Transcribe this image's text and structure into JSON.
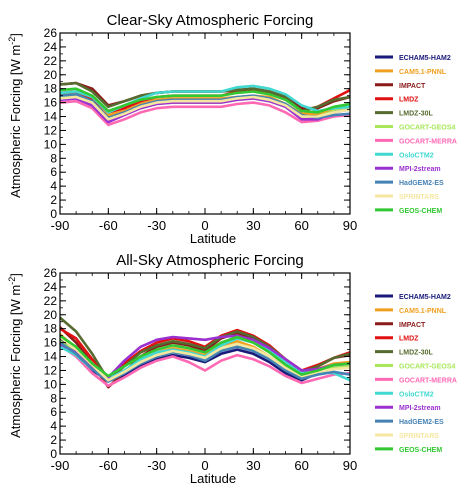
{
  "chart_data": [
    {
      "type": "line",
      "title": "Clear-Sky Atmospheric Forcing",
      "xlabel": "Latitude",
      "ylabel_main": "Atmospheric Forcing [W m",
      "ylabel_sup": "-2",
      "ylabel_end": "]",
      "xlim": [
        -90,
        90
      ],
      "ylim": [
        0,
        26
      ],
      "xticks": [
        -90,
        -60,
        -30,
        0,
        30,
        60,
        90
      ],
      "yticks": [
        0,
        2,
        4,
        6,
        8,
        10,
        12,
        14,
        16,
        18,
        20,
        22,
        24,
        26
      ],
      "x": [
        -90,
        -80,
        -70,
        -60,
        -50,
        -40,
        -30,
        -20,
        -10,
        0,
        10,
        20,
        30,
        40,
        50,
        60,
        70,
        80,
        90
      ],
      "series": [
        {
          "name": "ECHAM5-HAM2",
          "color": "#1a1a7a",
          "values": [
            17.0,
            17.2,
            16.4,
            14.0,
            14.6,
            15.6,
            16.2,
            16.4,
            16.4,
            16.4,
            16.4,
            16.6,
            16.8,
            16.6,
            15.6,
            14.4,
            14.2,
            14.8,
            15.0
          ]
        },
        {
          "name": "CAM5.1-PNNL",
          "color": "#f0a020",
          "values": [
            17.2,
            17.4,
            16.6,
            14.2,
            14.8,
            15.8,
            16.4,
            16.6,
            16.6,
            16.6,
            16.6,
            16.8,
            17.0,
            16.8,
            15.8,
            14.4,
            14.4,
            15.0,
            15.2
          ]
        },
        {
          "name": "IMPACT",
          "color": "#8b1a1a",
          "values": [
            18.6,
            18.8,
            18.0,
            15.6,
            16.2,
            17.0,
            17.4,
            17.6,
            17.6,
            17.6,
            17.6,
            17.8,
            18.0,
            17.6,
            16.8,
            15.2,
            15.2,
            16.2,
            16.8
          ]
        },
        {
          "name": "LMDZ",
          "color": "#e01010",
          "values": [
            17.4,
            17.6,
            16.6,
            14.6,
            15.2,
            16.2,
            16.8,
            17.0,
            17.0,
            17.0,
            17.0,
            17.6,
            17.8,
            17.4,
            16.6,
            14.8,
            15.4,
            16.6,
            17.8
          ]
        },
        {
          "name": "LMDZ-30L",
          "color": "#556b2f",
          "values": [
            18.6,
            18.8,
            17.6,
            15.4,
            16.2,
            17.0,
            17.4,
            17.6,
            17.6,
            17.6,
            17.6,
            17.8,
            18.0,
            17.6,
            16.8,
            14.8,
            15.4,
            16.4,
            16.8
          ]
        },
        {
          "name": "GOCART-GEOS4",
          "color": "#a8e85a",
          "values": [
            16.8,
            17.0,
            16.2,
            13.6,
            14.4,
            15.2,
            15.8,
            16.0,
            16.0,
            16.0,
            16.0,
            16.4,
            16.6,
            16.2,
            15.4,
            13.8,
            14.0,
            14.8,
            15.4
          ]
        },
        {
          "name": "GOCART-MERRA",
          "color": "#ff69b4",
          "values": [
            16.0,
            16.2,
            15.2,
            12.8,
            13.6,
            14.6,
            15.2,
            15.4,
            15.4,
            15.4,
            15.4,
            15.8,
            16.0,
            15.6,
            14.6,
            13.2,
            13.4,
            14.0,
            14.2
          ]
        },
        {
          "name": "OsloCTM2",
          "color": "#40d8d0",
          "values": [
            17.4,
            17.6,
            16.8,
            14.6,
            15.6,
            16.6,
            17.4,
            17.6,
            17.6,
            17.6,
            17.6,
            18.2,
            18.4,
            18.0,
            17.2,
            15.6,
            14.8,
            15.2,
            15.4
          ]
        },
        {
          "name": "MPI-2stream",
          "color": "#9b30d0",
          "values": [
            16.4,
            16.6,
            15.6,
            13.2,
            14.2,
            15.2,
            15.8,
            16.0,
            16.0,
            16.0,
            16.0,
            16.4,
            16.6,
            16.2,
            15.4,
            13.6,
            13.6,
            14.6,
            15.0
          ]
        },
        {
          "name": "HadGEM2-ES",
          "color": "#4682b4",
          "values": [
            17.0,
            17.2,
            16.2,
            13.8,
            14.6,
            15.6,
            16.2,
            16.4,
            16.4,
            16.4,
            16.4,
            16.8,
            17.0,
            16.6,
            15.8,
            14.2,
            13.8,
            14.2,
            14.4
          ]
        },
        {
          "name": "SPRINTARS",
          "color": "#f5e6a0",
          "values": [
            16.6,
            16.8,
            16.0,
            13.6,
            14.4,
            15.4,
            16.0,
            16.2,
            16.2,
            16.2,
            16.2,
            16.6,
            16.8,
            16.4,
            15.6,
            14.0,
            14.0,
            14.6,
            15.0
          ]
        },
        {
          "name": "GEOS-CHEM",
          "color": "#32c832",
          "values": [
            17.8,
            18.0,
            17.0,
            14.8,
            15.6,
            16.4,
            16.8,
            17.0,
            17.0,
            17.0,
            17.0,
            17.4,
            17.6,
            17.2,
            16.4,
            14.8,
            14.6,
            15.4,
            15.8
          ]
        }
      ],
      "legend": [
        "ECHAM5-HAM2",
        "CAM5.1-PNNL",
        "IMPACT",
        "LMDZ",
        "LMDZ-30L",
        "GOCART-GEOS4",
        "GOCART-MERRA",
        "OsloCTM2",
        "MPI-2stream",
        "HadGEM2-ES",
        "SPRINTARS",
        "GEOS-CHEM"
      ],
      "legend_placement": "right"
    },
    {
      "type": "line",
      "title": "All-Sky Atmospheric Forcing",
      "xlabel": "Latitude",
      "ylabel_main": "Atmospheric Forcing [W m",
      "ylabel_sup": "-2",
      "ylabel_end": "]",
      "xlim": [
        -90,
        90
      ],
      "ylim": [
        0,
        26
      ],
      "xticks": [
        -90,
        -60,
        -30,
        0,
        30,
        60,
        90
      ],
      "yticks": [
        0,
        2,
        4,
        6,
        8,
        10,
        12,
        14,
        16,
        18,
        20,
        22,
        24,
        26
      ],
      "x": [
        -90,
        -80,
        -70,
        -60,
        -50,
        -40,
        -30,
        -20,
        -10,
        0,
        10,
        20,
        30,
        40,
        50,
        60,
        70,
        80,
        90
      ],
      "series": [
        {
          "name": "ECHAM5-HAM2",
          "color": "#1a1a7a",
          "values": [
            16.4,
            14.4,
            12.0,
            10.6,
            11.2,
            12.6,
            13.6,
            14.2,
            13.8,
            13.2,
            14.4,
            15.0,
            14.4,
            13.2,
            11.6,
            10.6,
            11.6,
            12.4,
            12.6
          ]
        },
        {
          "name": "CAM5.1-PNNL",
          "color": "#f0a020",
          "values": [
            17.2,
            15.2,
            12.6,
            10.8,
            12.0,
            13.4,
            14.6,
            15.2,
            14.8,
            14.2,
            15.6,
            16.2,
            15.4,
            14.0,
            12.4,
            11.2,
            12.2,
            13.0,
            13.2
          ]
        },
        {
          "name": "IMPACT",
          "color": "#8b1a1a",
          "values": [
            18.2,
            16.0,
            13.0,
            9.6,
            11.8,
            14.0,
            15.4,
            16.0,
            15.6,
            14.8,
            16.6,
            17.4,
            16.6,
            15.2,
            13.4,
            11.8,
            12.6,
            13.8,
            14.2
          ]
        },
        {
          "name": "LMDZ",
          "color": "#e01010",
          "values": [
            18.0,
            16.6,
            13.6,
            11.0,
            13.0,
            14.8,
            16.0,
            16.6,
            16.2,
            15.4,
            17.0,
            17.8,
            17.0,
            15.6,
            13.6,
            12.0,
            12.8,
            13.8,
            14.6
          ]
        },
        {
          "name": "LMDZ-30L",
          "color": "#556b2f",
          "values": [
            19.6,
            17.6,
            14.4,
            10.6,
            12.6,
            14.6,
            15.6,
            16.2,
            15.8,
            15.2,
            16.8,
            17.6,
            16.8,
            15.4,
            13.6,
            11.8,
            12.6,
            13.8,
            14.4
          ]
        },
        {
          "name": "GOCART-GEOS4",
          "color": "#a8e85a",
          "values": [
            16.2,
            14.6,
            12.4,
            10.6,
            11.8,
            13.2,
            14.2,
            14.8,
            14.4,
            13.8,
            15.2,
            15.8,
            15.0,
            13.8,
            12.2,
            11.0,
            11.8,
            12.4,
            12.6
          ]
        },
        {
          "name": "GOCART-MERRA",
          "color": "#ff69b4",
          "values": [
            15.6,
            14.0,
            11.6,
            9.8,
            11.0,
            12.4,
            13.4,
            14.0,
            13.2,
            12.0,
            13.4,
            14.2,
            13.6,
            12.6,
            11.2,
            10.2,
            10.8,
            11.4,
            11.6
          ]
        },
        {
          "name": "OsloCTM2",
          "color": "#40d8d0",
          "values": [
            15.4,
            14.2,
            12.2,
            10.8,
            12.0,
            13.6,
            14.6,
            15.0,
            14.6,
            14.0,
            15.6,
            16.6,
            16.0,
            14.8,
            13.2,
            11.6,
            11.8,
            11.6,
            10.6
          ]
        },
        {
          "name": "MPI-2stream",
          "color": "#9b30d0",
          "values": [
            15.8,
            14.6,
            12.6,
            11.0,
            13.4,
            15.4,
            16.4,
            16.8,
            16.6,
            16.4,
            16.8,
            17.0,
            16.4,
            15.2,
            13.6,
            12.0,
            12.2,
            12.8,
            13.0
          ]
        },
        {
          "name": "HadGEM2-ES",
          "color": "#4682b4",
          "values": [
            16.0,
            14.4,
            12.2,
            10.4,
            11.6,
            13.0,
            14.0,
            14.6,
            14.2,
            13.4,
            14.8,
            15.4,
            14.8,
            13.6,
            12.0,
            10.8,
            11.4,
            11.8,
            11.4
          ]
        },
        {
          "name": "SPRINTARS",
          "color": "#f5e6a0",
          "values": [
            16.8,
            15.0,
            12.8,
            10.6,
            11.8,
            13.2,
            14.2,
            14.8,
            14.4,
            13.8,
            15.2,
            15.8,
            15.2,
            14.0,
            12.4,
            11.2,
            11.8,
            12.2,
            12.4
          ]
        },
        {
          "name": "GEOS-CHEM",
          "color": "#32c832",
          "values": [
            17.0,
            15.4,
            13.0,
            11.2,
            12.6,
            14.0,
            15.0,
            15.6,
            15.2,
            14.6,
            16.0,
            16.8,
            16.0,
            14.6,
            12.8,
            11.4,
            12.0,
            12.8,
            13.0
          ]
        }
      ],
      "legend": [
        "ECHAM5-HAM2",
        "CAM5.1-PNNL",
        "IMPACT",
        "LMDZ",
        "LMDZ-30L",
        "GOCART-GEOS4",
        "GOCART-MERRA",
        "OsloCTM2",
        "MPI-2stream",
        "HadGEM2-ES",
        "SPRINTARS",
        "GEOS-CHEM"
      ],
      "legend_placement": "right"
    }
  ]
}
